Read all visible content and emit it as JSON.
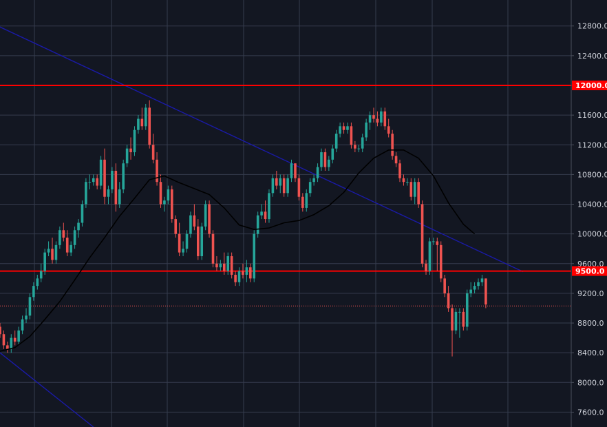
{
  "colors": {
    "background": "#131722",
    "grid": "#363c4e",
    "up": "#26a69a",
    "down": "#ef5350",
    "level_line": "#ff0000",
    "trendline": "#1a1aa6",
    "moving_average": "#000000",
    "axis_text": "#d1d4dc",
    "current_price_line": "#ef5350"
  },
  "chart_data": {
    "type": "candlestick",
    "x_label": "",
    "y_label": "",
    "ylim": [
      7400,
      13150
    ],
    "y_ticks": [
      "7600.0",
      "8000.0",
      "8400.0",
      "8800.0",
      "9200.0",
      "9600.0",
      "10000.0",
      "10400.0",
      "10800.0",
      "11200.0",
      "11600.0",
      "12000.0",
      "12400.0",
      "12800.0"
    ],
    "grid": true,
    "candles": [
      [
        8750,
        8800,
        8600,
        8650
      ],
      [
        8650,
        8700,
        8450,
        8500
      ],
      [
        8500,
        8550,
        8400,
        8450
      ],
      [
        8450,
        8650,
        8400,
        8600
      ],
      [
        8600,
        8700,
        8500,
        8550
      ],
      [
        8550,
        8750,
        8500,
        8700
      ],
      [
        8700,
        8900,
        8650,
        8850
      ],
      [
        8850,
        9000,
        8800,
        8900
      ],
      [
        8900,
        9200,
        8850,
        9150
      ],
      [
        9150,
        9350,
        9100,
        9300
      ],
      [
        9300,
        9450,
        9250,
        9400
      ],
      [
        9400,
        9600,
        9350,
        9500
      ],
      [
        9500,
        9800,
        9450,
        9750
      ],
      [
        9750,
        9900,
        9700,
        9800
      ],
      [
        9800,
        9950,
        9600,
        9650
      ],
      [
        9650,
        9900,
        9600,
        9850
      ],
      [
        9850,
        10100,
        9800,
        10050
      ],
      [
        10050,
        10150,
        9900,
        9950
      ],
      [
        9950,
        10050,
        9700,
        9750
      ],
      [
        9750,
        9900,
        9700,
        9850
      ],
      [
        9850,
        10100,
        9800,
        10050
      ],
      [
        10050,
        10200,
        9950,
        10150
      ],
      [
        10150,
        10450,
        10100,
        10400
      ],
      [
        10400,
        10750,
        10350,
        10700
      ],
      [
        10700,
        10800,
        10600,
        10700
      ],
      [
        10700,
        10800,
        10650,
        10750
      ],
      [
        10750,
        10800,
        10600,
        10650
      ],
      [
        10650,
        11050,
        10600,
        11000
      ],
      [
        11000,
        11150,
        10400,
        10500
      ],
      [
        10500,
        10650,
        10400,
        10600
      ],
      [
        10600,
        10900,
        10550,
        10850
      ],
      [
        10850,
        10950,
        10300,
        10400
      ],
      [
        10400,
        10700,
        10350,
        10600
      ],
      [
        10600,
        11000,
        10550,
        10950
      ],
      [
        10950,
        11200,
        10900,
        11150
      ],
      [
        11150,
        11300,
        11000,
        11100
      ],
      [
        11100,
        11450,
        11050,
        11400
      ],
      [
        11400,
        11600,
        11350,
        11550
      ],
      [
        11550,
        11700,
        11400,
        11450
      ],
      [
        11450,
        11750,
        11400,
        11700
      ],
      [
        11700,
        11800,
        11150,
        11200
      ],
      [
        11200,
        11350,
        10950,
        11000
      ],
      [
        11000,
        11100,
        10650,
        10700
      ],
      [
        10700,
        10800,
        10350,
        10400
      ],
      [
        10400,
        10500,
        10300,
        10450
      ],
      [
        10450,
        10650,
        10400,
        10600
      ],
      [
        10600,
        10650,
        10150,
        10200
      ],
      [
        10200,
        10250,
        9950,
        10000
      ],
      [
        10000,
        10150,
        9700,
        9750
      ],
      [
        9750,
        9900,
        9700,
        9800
      ],
      [
        9800,
        10050,
        9750,
        10000
      ],
      [
        10000,
        10300,
        9950,
        10250
      ],
      [
        10250,
        10400,
        10050,
        10100
      ],
      [
        10100,
        10200,
        9650,
        9700
      ],
      [
        9700,
        10150,
        9650,
        10100
      ],
      [
        10100,
        10450,
        10050,
        10400
      ],
      [
        10400,
        10450,
        9950,
        10000
      ],
      [
        10000,
        10050,
        9550,
        9600
      ],
      [
        9600,
        9700,
        9500,
        9550
      ],
      [
        9550,
        9650,
        9500,
        9600
      ],
      [
        9600,
        9750,
        9450,
        9500
      ],
      [
        9500,
        9750,
        9450,
        9700
      ],
      [
        9700,
        9750,
        9400,
        9450
      ],
      [
        9450,
        9500,
        9300,
        9350
      ],
      [
        9350,
        9550,
        9300,
        9500
      ],
      [
        9500,
        9600,
        9400,
        9450
      ],
      [
        9450,
        9650,
        9350,
        9550
      ],
      [
        9550,
        9600,
        9350,
        9400
      ],
      [
        9400,
        10050,
        9350,
        10000
      ],
      [
        10000,
        10300,
        9950,
        10250
      ],
      [
        10250,
        10400,
        10200,
        10300
      ],
      [
        10300,
        10450,
        10150,
        10200
      ],
      [
        10200,
        10600,
        10150,
        10550
      ],
      [
        10550,
        10800,
        10500,
        10750
      ],
      [
        10750,
        10850,
        10600,
        10650
      ],
      [
        10650,
        10800,
        10550,
        10750
      ],
      [
        10750,
        10800,
        10500,
        10550
      ],
      [
        10550,
        10800,
        10500,
        10750
      ],
      [
        10750,
        11000,
        10700,
        10950
      ],
      [
        10950,
        10950,
        10700,
        10750
      ],
      [
        10750,
        10800,
        10450,
        10500
      ],
      [
        10500,
        10550,
        10300,
        10350
      ],
      [
        10350,
        10600,
        10300,
        10550
      ],
      [
        10550,
        10750,
        10500,
        10700
      ],
      [
        10700,
        10800,
        10650,
        10750
      ],
      [
        10750,
        10950,
        10700,
        10900
      ],
      [
        10900,
        11150,
        10850,
        11100
      ],
      [
        11100,
        11150,
        10850,
        10900
      ],
      [
        10900,
        11050,
        10850,
        11000
      ],
      [
        11000,
        11200,
        10950,
        11150
      ],
      [
        11150,
        11400,
        11100,
        11350
      ],
      [
        11350,
        11500,
        11300,
        11450
      ],
      [
        11450,
        11500,
        11350,
        11400
      ],
      [
        11400,
        11500,
        11350,
        11450
      ],
      [
        11450,
        11500,
        11150,
        11200
      ],
      [
        11200,
        11250,
        11100,
        11150
      ],
      [
        11150,
        11200,
        11100,
        11150
      ],
      [
        11150,
        11350,
        11100,
        11300
      ],
      [
        11300,
        11550,
        11250,
        11500
      ],
      [
        11500,
        11650,
        11400,
        11600
      ],
      [
        11600,
        11700,
        11500,
        11550
      ],
      [
        11550,
        11650,
        11450,
        11500
      ],
      [
        11500,
        11700,
        11450,
        11650
      ],
      [
        11650,
        11700,
        11400,
        11450
      ],
      [
        11450,
        11550,
        11300,
        11350
      ],
      [
        11350,
        11400,
        11000,
        11050
      ],
      [
        11050,
        11100,
        10900,
        10950
      ],
      [
        10950,
        11000,
        10700,
        10750
      ],
      [
        10750,
        10800,
        10650,
        10700
      ],
      [
        10700,
        10750,
        10650,
        10700
      ],
      [
        10700,
        10750,
        10450,
        10500
      ],
      [
        10500,
        10750,
        10400,
        10700
      ],
      [
        10700,
        10750,
        10350,
        10400
      ],
      [
        10400,
        10450,
        9550,
        9600
      ],
      [
        9600,
        9650,
        9450,
        9500
      ],
      [
        9500,
        9950,
        9450,
        9900
      ],
      [
        9900,
        9950,
        9850,
        9900
      ],
      [
        9900,
        9950,
        9500,
        9850
      ],
      [
        9850,
        9900,
        9350,
        9400
      ],
      [
        9400,
        9450,
        9150,
        9200
      ],
      [
        9200,
        9300,
        8950,
        9000
      ],
      [
        9000,
        9050,
        8350,
        8700
      ],
      [
        8700,
        9000,
        8650,
        8950
      ],
      [
        8950,
        9000,
        8600,
        8950
      ],
      [
        8950,
        9000,
        8700,
        8750
      ],
      [
        8750,
        9250,
        8700,
        9200
      ],
      [
        9200,
        9350,
        9150,
        9250
      ],
      [
        9250,
        9350,
        9200,
        9300
      ],
      [
        9300,
        9400,
        9250,
        9350
      ],
      [
        9350,
        9450,
        9300,
        9400
      ],
      [
        9400,
        9400,
        9000,
        9050
      ]
    ],
    "moving_average": [
      [
        0,
        8420
      ],
      [
        4,
        8470
      ],
      [
        8,
        8620
      ],
      [
        12,
        8850
      ],
      [
        16,
        9090
      ],
      [
        20,
        9380
      ],
      [
        24,
        9680
      ],
      [
        28,
        9950
      ],
      [
        32,
        10240
      ],
      [
        36,
        10480
      ],
      [
        40,
        10730
      ],
      [
        44,
        10780
      ],
      [
        48,
        10690
      ],
      [
        52,
        10610
      ],
      [
        56,
        10530
      ],
      [
        60,
        10350
      ],
      [
        64,
        10120
      ],
      [
        68,
        10060
      ],
      [
        72,
        10080
      ],
      [
        76,
        10150
      ],
      [
        80,
        10180
      ],
      [
        84,
        10260
      ],
      [
        88,
        10380
      ],
      [
        92,
        10560
      ],
      [
        96,
        10820
      ],
      [
        100,
        11020
      ],
      [
        104,
        11130
      ],
      [
        108,
        11130
      ],
      [
        112,
        11020
      ],
      [
        116,
        10780
      ],
      [
        120,
        10420
      ],
      [
        124,
        10130
      ],
      [
        127,
        10000
      ]
    ],
    "trendlines": [
      {
        "points": [
          [
            -1,
            12810
          ],
          [
            140,
            9490
          ]
        ]
      },
      {
        "points": [
          [
            0,
            8400
          ],
          [
            25,
            7400
          ]
        ]
      }
    ],
    "horizontal_levels": [
      {
        "value": 12000,
        "label": "12000.0"
      },
      {
        "value": 9500,
        "label": "9500.0"
      }
    ],
    "current_price": 9030
  }
}
